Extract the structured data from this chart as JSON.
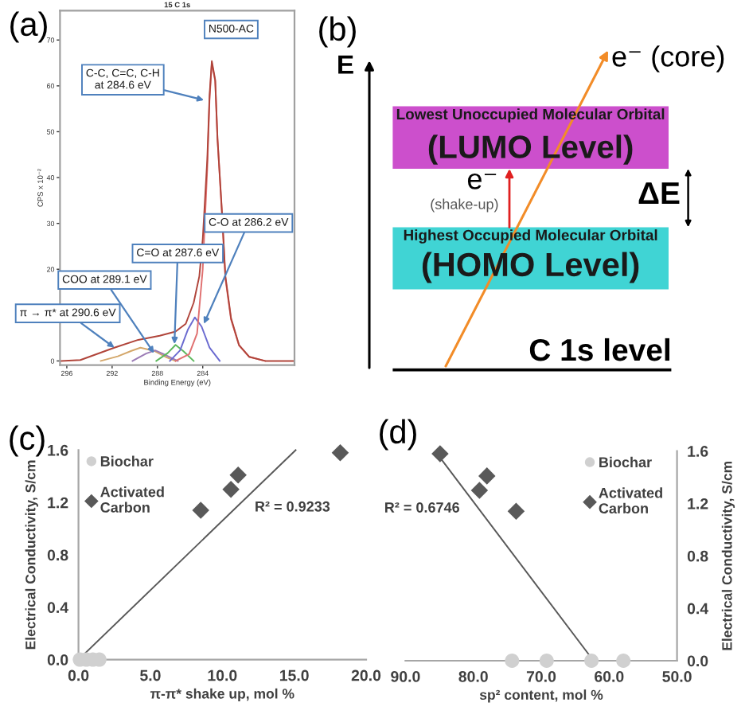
{
  "chart_data": [
    {
      "type": "line",
      "title": "(a)",
      "subtitle": "15 C 1s",
      "xlabel": "Binding Energy (eV)",
      "ylabel": "CPS x 10⁻²",
      "xlim": [
        296.6,
        275.9
      ],
      "ylim": [
        -0.9,
        76.4
      ],
      "xticks": [
        296,
        292,
        288,
        284
      ],
      "yticks": [
        0,
        20,
        30,
        40,
        50,
        60,
        70
      ],
      "series": [
        {
          "color": "#d4a76a",
          "x": [
            293.0,
            291.5,
            290.3,
            289.5,
            288.3,
            287.2,
            286.4
          ],
          "values": [
            0,
            1.0,
            2.2,
            2.9,
            2.2,
            0.8,
            0
          ]
        },
        {
          "color": "#9b7bb5",
          "x": [
            290.2,
            289.0,
            288.2,
            287.2,
            286.2
          ],
          "values": [
            0,
            1.6,
            2.3,
            1.2,
            0
          ]
        },
        {
          "color": "#5cb85c",
          "x": [
            288.1,
            287.1,
            286.4,
            285.7,
            284.8
          ],
          "values": [
            0,
            1.7,
            3.5,
            2.1,
            0
          ]
        },
        {
          "color": "#6a6ad0",
          "x": [
            286.9,
            286.0,
            285.3,
            284.7,
            284.1,
            283.4,
            282.5
          ],
          "values": [
            0,
            2.3,
            6.9,
            9.5,
            7.5,
            2.9,
            0
          ]
        },
        {
          "color": "#e07070",
          "x": [
            286.4,
            285.2,
            284.5,
            284.0,
            283.6,
            283.4,
            283.2,
            282.9,
            282.7,
            282.3,
            282.0,
            281.5,
            280.8,
            279.9,
            278.5
          ],
          "values": [
            0,
            1.5,
            6,
            20,
            42,
            57,
            65,
            61,
            48.5,
            32,
            18,
            9,
            3.4,
            0.9,
            0
          ]
        },
        {
          "color": "#b0443a",
          "x": [
            296.5,
            294.8,
            291.8,
            289.7,
            287.8,
            286.4,
            285.5,
            284.8,
            284.3,
            284.0,
            283.6,
            283.4,
            283.2,
            282.9,
            282.7,
            282.3,
            282.0,
            281.5,
            280.8,
            279.9,
            278.5,
            275.9
          ],
          "values": [
            0,
            0.2,
            2.9,
            4.6,
            5.5,
            6.4,
            8.1,
            12.7,
            18.5,
            26.6,
            44,
            57.9,
            65.4,
            61.3,
            48.6,
            32.4,
            18.5,
            9.3,
            3.5,
            0.9,
            0,
            0
          ]
        }
      ],
      "annotations": [
        "N500-AC",
        {
          "text": "C-C, C=C, C-H\nat 284.6 eV",
          "x": 283.9,
          "y": 56.9
        },
        {
          "text": "C-O at 286.2 eV",
          "x": 283.9,
          "y": 8.1
        },
        {
          "text": "C=O at 287.6 eV",
          "x": 286.5,
          "y": 3.7
        },
        {
          "text": "COO at 289.1 eV",
          "x": 288.3,
          "y": 1.7
        },
        {
          "text": "π → π* at 290.6 eV",
          "x": 291.8,
          "y": 2.9
        }
      ]
    },
    {
      "type": "other",
      "title": "(b)",
      "annotations": [
        "E",
        "e⁻ (core)",
        "Lowest Unoccupied Molecular Orbital",
        "(LUMO Level)",
        "e⁻",
        "(shake-up)",
        "ΔE",
        "Highest Occupied Molecular Orbital",
        "(HOMO Level)",
        "C 1s level"
      ]
    },
    {
      "type": "scatter",
      "title": "(c)",
      "xlabel": "π-π* shake up, mol %",
      "ylabel": "Electrical Conductivity, S/cm",
      "xlim": [
        0,
        20
      ],
      "ylim": [
        0,
        1.6
      ],
      "xticks": [
        {
          "value": 0,
          "label": "0.0"
        },
        {
          "value": 5,
          "label": "5.0"
        },
        {
          "value": 10,
          "label": "10.0"
        },
        {
          "value": 15,
          "label": "15.0"
        },
        {
          "value": 20,
          "label": "20.0"
        }
      ],
      "yticks": [
        {
          "value": 0,
          "label": "0.0"
        },
        0.4,
        0.8,
        1.2,
        1.6
      ],
      "legend": "top left",
      "series": [
        {
          "name": "Biochar",
          "color": "#d0d0d0",
          "marker": "circle",
          "x": [
            0.1,
            0.55,
            1.0,
            1.45
          ],
          "values": [
            0,
            0,
            0,
            0
          ]
        },
        {
          "name": "Activated Carbon",
          "color": "#595959",
          "marker": "diamond",
          "x": [
            8.5,
            10.6,
            11.1,
            18.2
          ],
          "values": [
            1.14,
            1.3,
            1.41,
            1.58
          ]
        },
        {
          "type": "line",
          "color": "#595959",
          "x": [
            0,
            15.1
          ],
          "values": [
            0,
            1.6
          ]
        }
      ],
      "annotations": [
        "R² = 0.9233"
      ]
    },
    {
      "type": "scatter",
      "title": "(d)",
      "xlabel": "sp² content, mol %",
      "ylabel": "Electrical Conductivity, S/cm",
      "xlim": [
        90,
        50
      ],
      "ylim": [
        0,
        1.6
      ],
      "xticks": [
        {
          "value": 90,
          "label": "90.0"
        },
        {
          "value": 80,
          "label": "80.0"
        },
        {
          "value": 70,
          "label": "70.0"
        },
        {
          "value": 60,
          "label": "60.0"
        },
        {
          "value": 50,
          "label": "50.0"
        }
      ],
      "yticks": [
        {
          "value": 0,
          "label": "0.0"
        },
        0.4,
        0.8,
        1.2,
        1.6
      ],
      "legend": "top right",
      "series": [
        {
          "name": "Biochar",
          "color": "#d0d0d0",
          "marker": "circle",
          "x": [
            74.3,
            69.2,
            62.6,
            57.9
          ],
          "values": [
            0,
            0,
            0,
            0
          ]
        },
        {
          "name": "Activated Carbon",
          "color": "#595959",
          "marker": "diamond",
          "x": [
            84.9,
            79.1,
            78.0,
            73.7
          ],
          "values": [
            1.58,
            1.3,
            1.41,
            1.14
          ]
        },
        {
          "type": "line",
          "color": "#595959",
          "x": [
            84.9,
            62.3
          ],
          "values": [
            1.55,
            0
          ]
        }
      ],
      "annotations": [
        "R² = 0.6746"
      ]
    }
  ]
}
